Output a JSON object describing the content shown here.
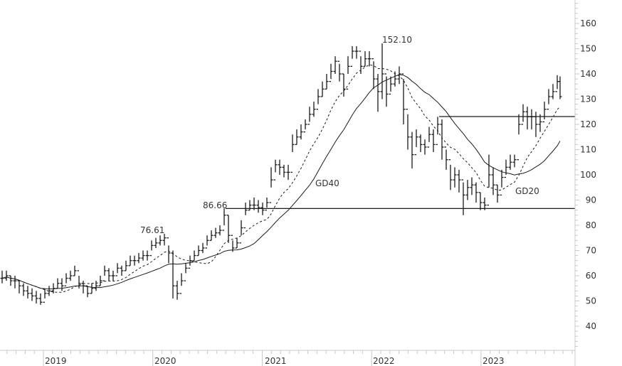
{
  "chart_data": {
    "type": "ohlc-bar",
    "title": "",
    "xlabel": "",
    "ylabel": "",
    "ylim": [
      30,
      168
    ],
    "grid": false,
    "y_ticks": [
      40,
      50,
      60,
      70,
      80,
      90,
      100,
      110,
      120,
      130,
      140,
      150,
      160
    ],
    "x_ticks": [
      "2019",
      "2020",
      "2021",
      "2022",
      "2023"
    ],
    "close": [
      59,
      60,
      58,
      58,
      56,
      54,
      53,
      52,
      51,
      49.5,
      53,
      54,
      55,
      57,
      56,
      59,
      60,
      62,
      57,
      56,
      53,
      55,
      56,
      58,
      62,
      60,
      60,
      63,
      62,
      64,
      66,
      66,
      67,
      68,
      68,
      72,
      73,
      74,
      75,
      69,
      56,
      53,
      58,
      63,
      66,
      68,
      70,
      71,
      74,
      76,
      77,
      78,
      84,
      76,
      71,
      73,
      79,
      86,
      88,
      88,
      87,
      86,
      89,
      98,
      104,
      103,
      101,
      101,
      112,
      115,
      117,
      120,
      124,
      126,
      131,
      134,
      137,
      141,
      145,
      140,
      134,
      143,
      149,
      149,
      143,
      146,
      146,
      138,
      133,
      140,
      132,
      136,
      138,
      140,
      126,
      115,
      108,
      115,
      112,
      111,
      116,
      112,
      120,
      111,
      106,
      98,
      100,
      98,
      92,
      95,
      96,
      93,
      89,
      88,
      100,
      96,
      92,
      99,
      103,
      105,
      106,
      120,
      125,
      123,
      123,
      120,
      121,
      126,
      131,
      133,
      137,
      131
    ],
    "high": [
      62,
      62,
      60,
      60,
      58,
      57,
      56,
      55,
      54,
      53,
      55,
      56,
      57,
      59,
      59,
      61,
      62,
      64,
      60,
      58,
      56,
      57,
      58,
      60,
      64,
      63,
      62,
      65,
      64,
      66,
      68,
      68,
      69,
      70,
      70,
      74,
      75,
      76,
      76.61,
      72,
      70,
      58,
      61,
      65,
      68,
      70,
      72,
      73,
      76,
      78,
      79,
      80,
      86.66,
      84,
      74,
      75,
      82,
      89,
      90,
      91,
      90,
      89,
      91,
      103,
      106,
      106,
      104,
      104,
      116,
      118,
      120,
      122,
      127,
      129,
      134,
      137,
      140,
      144,
      147,
      144,
      140,
      147,
      151,
      151,
      147,
      149,
      149,
      145,
      140,
      152.1,
      139,
      139,
      141,
      143,
      138,
      124,
      117,
      118,
      116,
      114,
      119,
      118,
      123,
      122,
      110,
      104,
      103,
      102,
      97,
      98,
      99,
      97,
      93,
      91,
      108,
      103,
      96,
      102,
      106,
      108,
      108,
      124,
      128,
      127,
      126,
      125,
      124,
      129,
      134,
      136,
      139.5,
      139
    ],
    "low": [
      57,
      58,
      56,
      55,
      53,
      52,
      51,
      50,
      49,
      48.5,
      51,
      52,
      53,
      55,
      54,
      57,
      58,
      60,
      55,
      53,
      51.5,
      53,
      54,
      56,
      60,
      58,
      58,
      61,
      60,
      62,
      64,
      64,
      65,
      66,
      66,
      70,
      71,
      72,
      72,
      65,
      51,
      50.5,
      56,
      61,
      64,
      66,
      68,
      69,
      72,
      74,
      75,
      76,
      80,
      73,
      69.5,
      71,
      76,
      84,
      86,
      86,
      85,
      84,
      87,
      95,
      101,
      100,
      99,
      98,
      109,
      112,
      114,
      118,
      121,
      123,
      128,
      131,
      134,
      138,
      140,
      137,
      131,
      140,
      146,
      146,
      140,
      143,
      143,
      134,
      125,
      130,
      127,
      133,
      135,
      136,
      120,
      110,
      102.5,
      111,
      109,
      108,
      113,
      109,
      116,
      106,
      102,
      94,
      95,
      93,
      84,
      90,
      92,
      89,
      86,
      86,
      95,
      92,
      89,
      95,
      100,
      102,
      103,
      116,
      121,
      118,
      118,
      115,
      117,
      122,
      128,
      130,
      134,
      130
    ],
    "moving_averages": [
      {
        "name": "GD20",
        "style": "dashed"
      },
      {
        "name": "GD40",
        "style": "solid"
      }
    ],
    "levels": [
      86.66,
      123.1
    ],
    "annotations": {
      "peak_2020": "76.61",
      "breakout": "86.66",
      "peak_2021": "152.10",
      "gd40_label": "GD40",
      "gd20_label": "GD20"
    },
    "colors": {
      "bars": "#1a1a1a",
      "axis": "#c8c8c8",
      "text": "#333333"
    }
  }
}
